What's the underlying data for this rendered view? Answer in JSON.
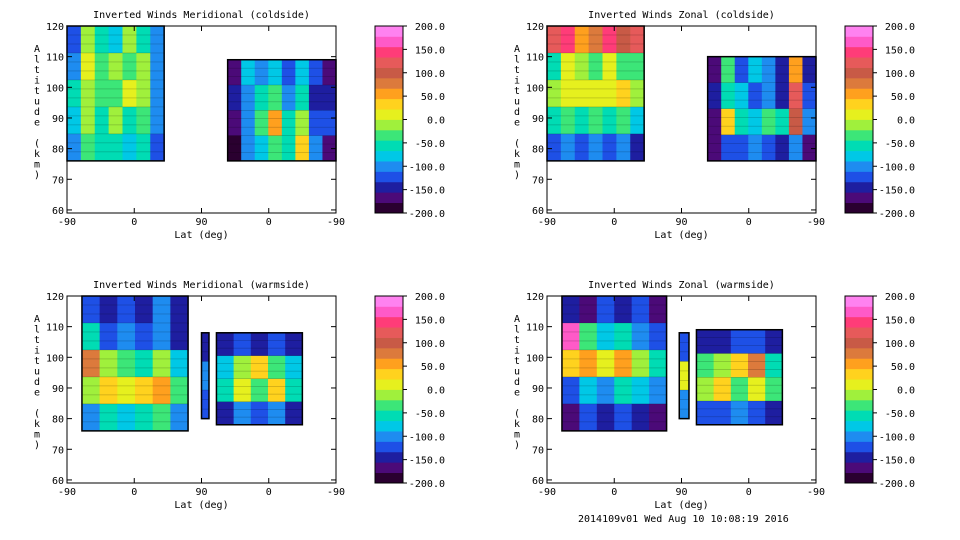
{
  "footer": "2014109v01 Wed Aug 10 10:08:19 2016",
  "colorbar": {
    "ticks": [
      "200.0",
      "150.0",
      "100.0",
      "50.0",
      "0.0",
      "-50.0",
      "-100.0",
      "-150.0",
      "-200.0"
    ],
    "range": [
      -200,
      200
    ],
    "colors": [
      "#2a0030",
      "#4b0a78",
      "#1e1ea0",
      "#1e50e6",
      "#1e8cf0",
      "#00c8e6",
      "#00dcb4",
      "#3ce678",
      "#a0f03c",
      "#e6f01e",
      "#ffd21e",
      "#ffa01e",
      "#dc7a3c",
      "#c85a46",
      "#e65a5a",
      "#ff3c78",
      "#ff5ac8",
      "#ff82f0"
    ]
  },
  "chart_data": [
    {
      "type": "heatmap",
      "title": "Inverted Winds Meridional (coldside)",
      "xlabel": "Lat (deg)",
      "ylabel": "Altitude (km)",
      "xticks": [
        "-90",
        "0",
        "90",
        "0",
        "-90"
      ],
      "yticks": [
        "60",
        "70",
        "80",
        "90",
        "100",
        "110",
        "120"
      ],
      "ylim": [
        59,
        120
      ],
      "segments": [
        {
          "x0": -90,
          "x1": 40,
          "bottom": 76,
          "top": 120,
          "values": [
            [
              -120,
              -10,
              -50,
              -80,
              -20,
              -60,
              -110
            ],
            [
              -90,
              0,
              -30,
              -20,
              -40,
              -10,
              -100
            ],
            [
              -60,
              -10,
              -40,
              -30,
              0,
              -20,
              -110
            ],
            [
              -70,
              -20,
              -50,
              -10,
              -60,
              -40,
              -100
            ],
            [
              -100,
              -40,
              -60,
              -50,
              -70,
              -60,
              -120
            ]
          ]
        },
        {
          "x0": 125,
          "x1": 270,
          "bottom": 76,
          "top": 109,
          "values": [
            [
              -170,
              -80,
              -100,
              -70,
              -130,
              -80,
              -120,
              -160
            ],
            [
              -150,
              -110,
              -60,
              -30,
              -110,
              -60,
              -140,
              -140
            ],
            [
              -160,
              -90,
              -40,
              60,
              -50,
              -20,
              -120,
              -130
            ],
            [
              -180,
              -100,
              -80,
              -40,
              -60,
              30,
              -90,
              -170
            ]
          ]
        }
      ]
    },
    {
      "type": "heatmap",
      "title": "Inverted Winds Zonal (coldside)",
      "xlabel": "Lat (deg)",
      "ylabel": "Altitude (km)",
      "xticks": [
        "-90",
        "0",
        "90",
        "0",
        "-90"
      ],
      "yticks": [
        "60",
        "70",
        "80",
        "90",
        "100",
        "110",
        "120"
      ],
      "ylim": [
        59,
        120
      ],
      "segments": [
        {
          "x0": -90,
          "x1": 40,
          "bottom": 76,
          "top": 120,
          "values": [
            [
              120,
              140,
              60,
              80,
              150,
              110,
              130
            ],
            [
              -60,
              0,
              -20,
              -30,
              20,
              -30,
              -40
            ],
            [
              -20,
              10,
              20,
              0,
              10,
              30,
              -10
            ],
            [
              -60,
              -40,
              -50,
              -30,
              -60,
              -40,
              -80
            ],
            [
              -130,
              -110,
              -120,
              -100,
              -130,
              -110,
              -150
            ]
          ]
        },
        {
          "x0": 125,
          "x1": 270,
          "bottom": 76,
          "top": 110,
          "values": [
            [
              -160,
              -40,
              -120,
              -80,
              -100,
              -150,
              60,
              -150
            ],
            [
              -150,
              -60,
              -80,
              -120,
              -90,
              -140,
              120,
              -130
            ],
            [
              -160,
              30,
              -60,
              -80,
              -40,
              -60,
              100,
              -110
            ],
            [
              -170,
              -120,
              -130,
              -100,
              -120,
              -140,
              -110,
              -170
            ]
          ]
        }
      ]
    },
    {
      "type": "heatmap",
      "title": "Inverted Winds Meridional (warmside)",
      "xlabel": "Lat (deg)",
      "ylabel": "Altitude (km)",
      "xticks": [
        "-90",
        "0",
        "90",
        "0",
        "-90"
      ],
      "yticks": [
        "60",
        "70",
        "80",
        "90",
        "100",
        "110",
        "120"
      ],
      "ylim": [
        59,
        120
      ],
      "segments": [
        {
          "x0": -70,
          "x1": 72,
          "bottom": 76,
          "top": 120,
          "values": [
            [
              -130,
              -150,
              -120,
              -140,
              -110,
              -150
            ],
            [
              -60,
              -120,
              -100,
              -130,
              -90,
              -140
            ],
            [
              70,
              -10,
              -40,
              -60,
              -20,
              -70
            ],
            [
              -10,
              30,
              0,
              30,
              50,
              -30
            ],
            [
              -90,
              -60,
              -70,
              -50,
              -40,
              -90
            ]
          ]
        },
        {
          "x0": 90,
          "x1": 100,
          "bottom": 80,
          "top": 108,
          "values": [
            [
              -150
            ],
            [
              -100
            ],
            [
              -120
            ]
          ]
        },
        {
          "x0": 110,
          "x1": 225,
          "bottom": 78,
          "top": 108,
          "values": [
            [
              -150,
              -130,
              -140,
              -120,
              -150
            ],
            [
              -70,
              -20,
              30,
              -30,
              -80
            ],
            [
              -50,
              10,
              -40,
              40,
              -60
            ],
            [
              -140,
              -110,
              -120,
              -100,
              -150
            ]
          ]
        }
      ]
    },
    {
      "type": "heatmap",
      "title": "Inverted Winds Zonal (warmside)",
      "xlabel": "Lat (deg)",
      "ylabel": "Altitude (km)",
      "xticks": [
        "-90",
        "0",
        "90",
        "0",
        "-90"
      ],
      "yticks": [
        "60",
        "70",
        "80",
        "90",
        "100",
        "110",
        "120"
      ],
      "ylim": [
        59,
        120
      ],
      "segments": [
        {
          "x0": -70,
          "x1": 70,
          "bottom": 76,
          "top": 120,
          "values": [
            [
              -140,
              -160,
              -120,
              -150,
              -130,
              -160
            ],
            [
              160,
              -30,
              -80,
              -60,
              -100,
              -130
            ],
            [
              40,
              60,
              10,
              50,
              -20,
              -60
            ],
            [
              -120,
              -70,
              -90,
              -60,
              -80,
              -110
            ],
            [
              -160,
              -130,
              -140,
              -120,
              -150,
              -170
            ]
          ]
        },
        {
          "x0": 87,
          "x1": 100,
          "bottom": 80,
          "top": 108,
          "values": [
            [
              -120
            ],
            [
              20
            ],
            [
              -110
            ]
          ]
        },
        {
          "x0": 110,
          "x1": 225,
          "bottom": 78,
          "top": 109,
          "values": [
            [
              -150,
              -140,
              -120,
              -130,
              -150
            ],
            [
              -40,
              -20,
              30,
              80,
              -60
            ],
            [
              -10,
              40,
              -30,
              10,
              -40
            ],
            [
              -130,
              -120,
              -110,
              -120,
              -150
            ]
          ]
        }
      ]
    }
  ]
}
